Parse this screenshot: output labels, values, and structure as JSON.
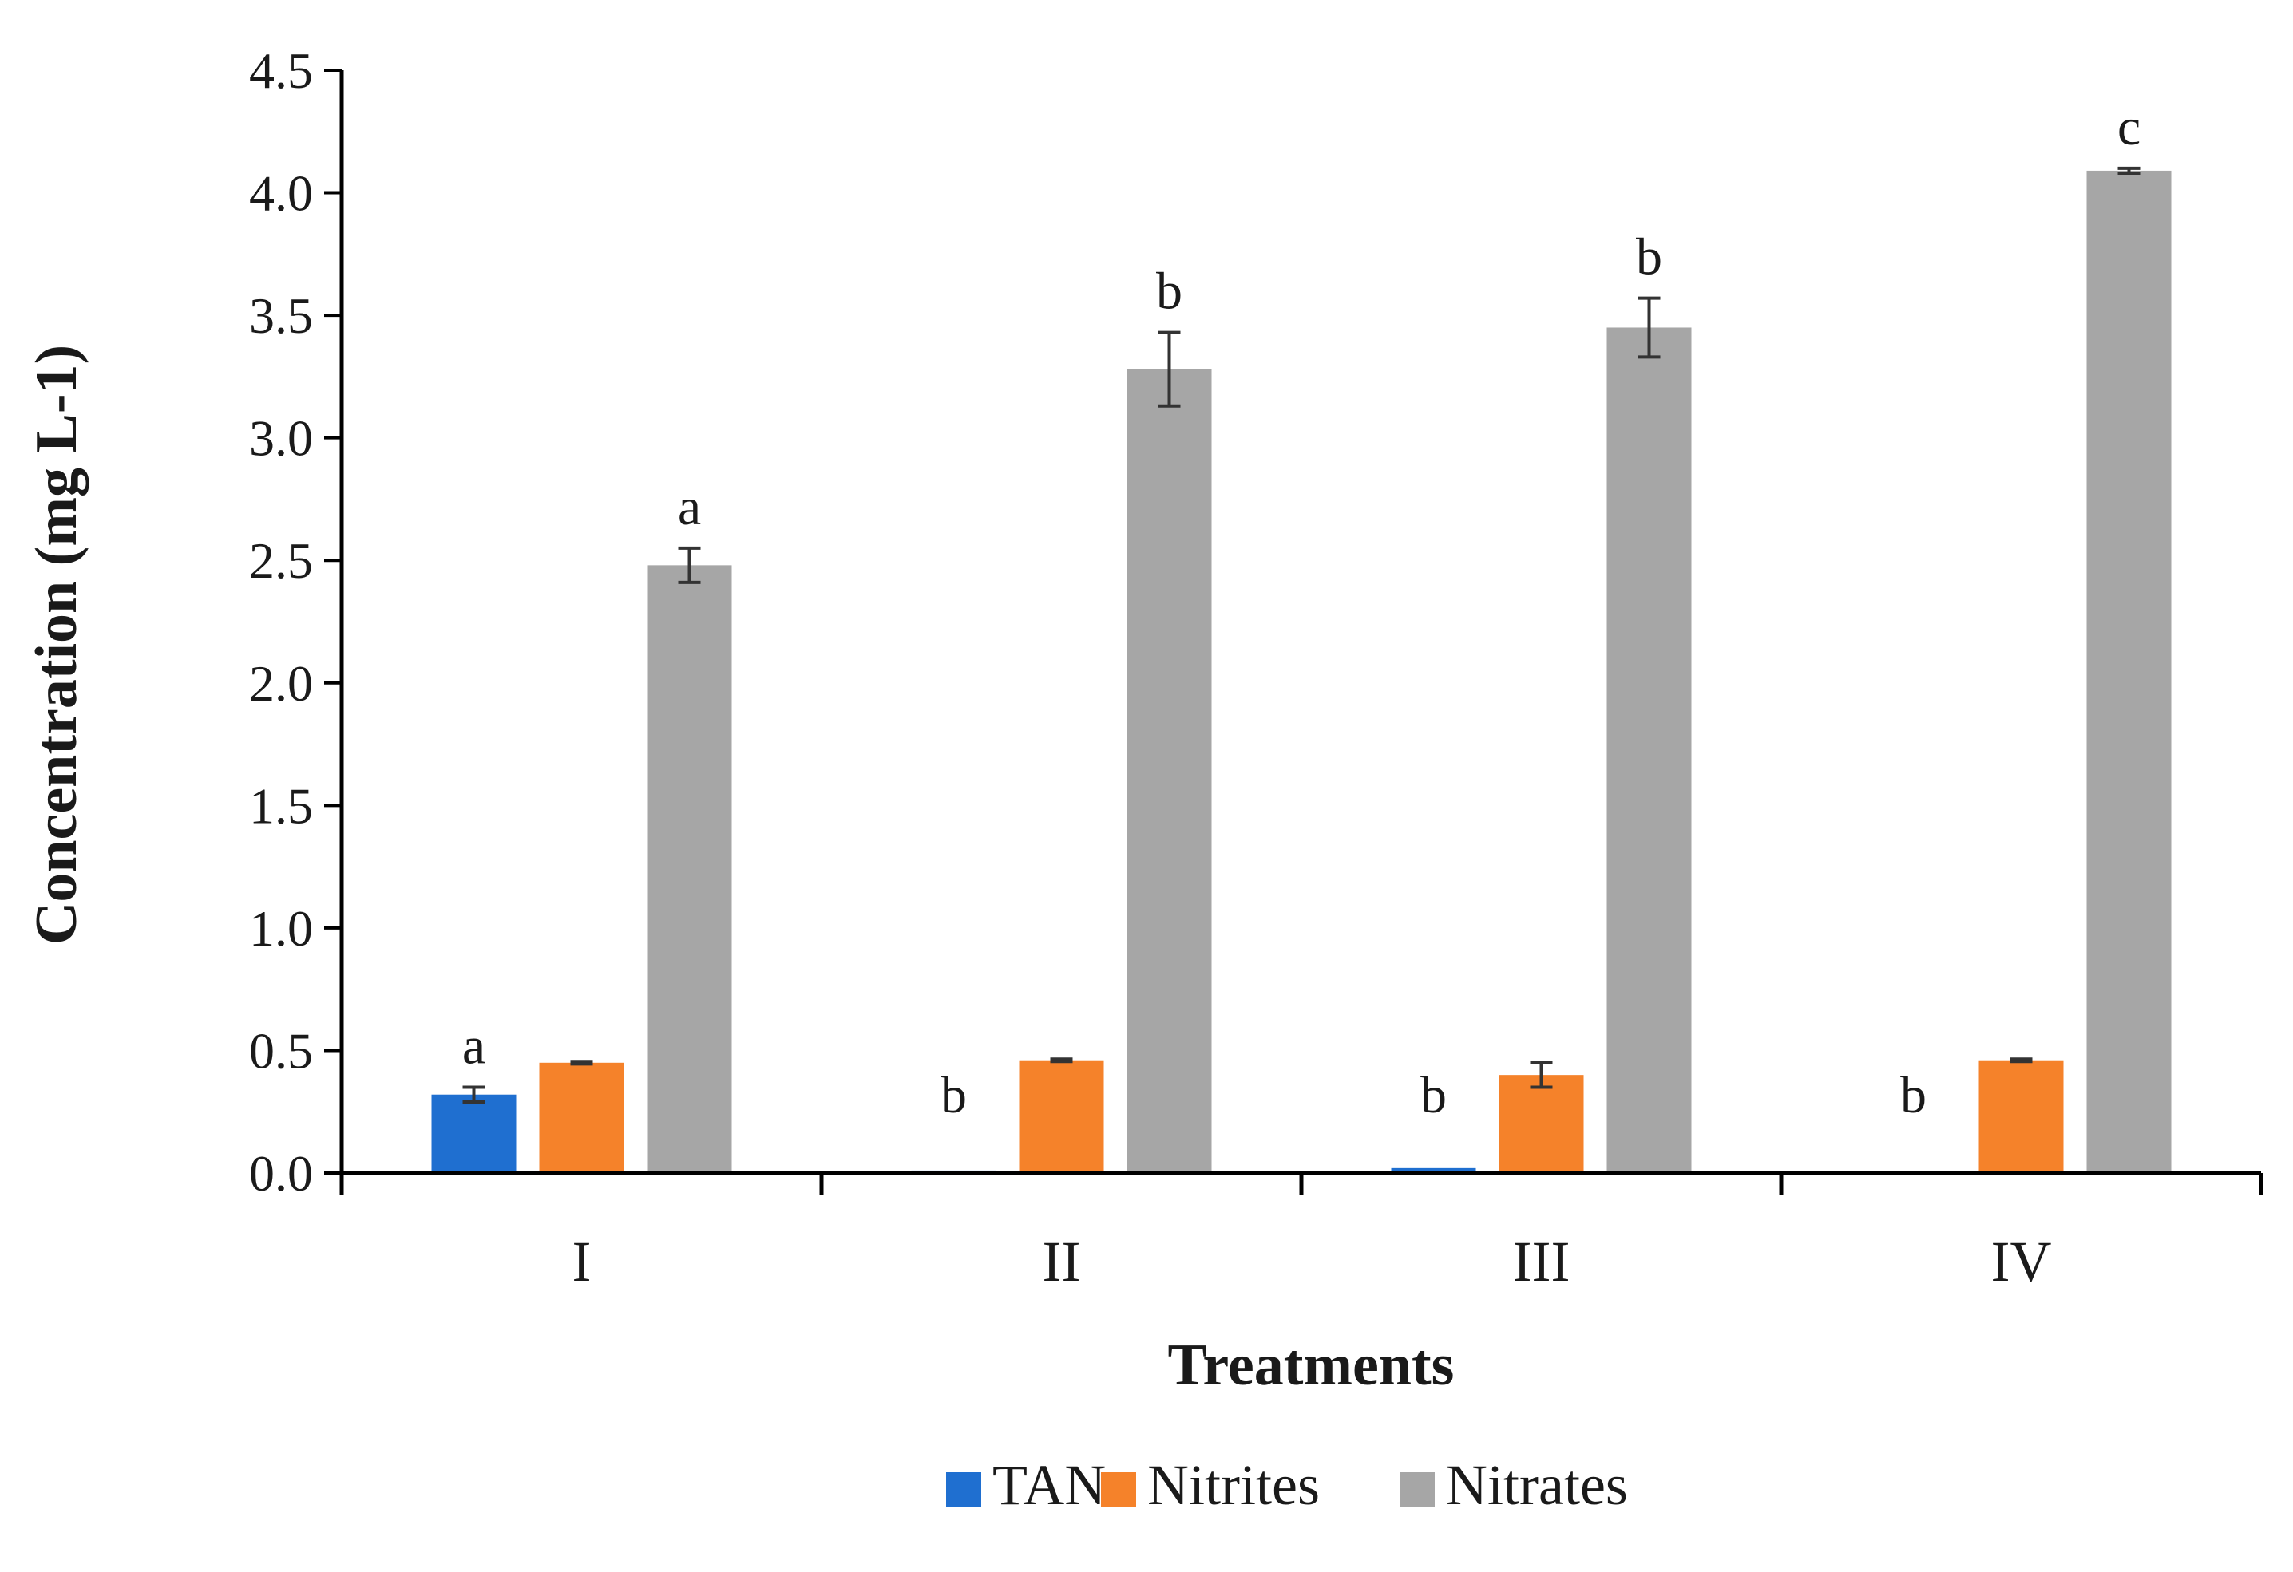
{
  "chart_data": {
    "type": "bar",
    "xlabel": "Treatments",
    "ylabel": "Concentration  (mg L-1)",
    "ylim": [
      0,
      4.5
    ],
    "ytick_step": 0.5,
    "yticks": [
      "0.0",
      "0.5",
      "1.0",
      "1.5",
      "2.0",
      "2.5",
      "3.0",
      "3.5",
      "4.0",
      "4.5"
    ],
    "grid": false,
    "legend_position": "bottom",
    "categories": [
      "I",
      "II",
      "III",
      "IV"
    ],
    "series": [
      {
        "name": "TAN",
        "color": "#1f6fd0",
        "values": [
          0.32,
          0.01,
          0.02,
          0.0
        ],
        "errors": [
          0.03,
          0.0,
          0.0,
          0.0
        ],
        "labels": [
          "a",
          "b",
          "b",
          "b"
        ]
      },
      {
        "name": "Nitrites",
        "color": "#f5822a",
        "values": [
          0.45,
          0.46,
          0.4,
          0.46
        ],
        "errors": [
          0.005,
          0.005,
          0.05,
          0.005
        ],
        "labels": [
          "",
          "",
          "",
          ""
        ]
      },
      {
        "name": "Nitrates",
        "color": "#a6a6a6",
        "values": [
          2.48,
          3.28,
          3.45,
          4.09
        ],
        "errors": [
          0.07,
          0.15,
          0.12,
          0.01
        ],
        "labels": [
          "a",
          "b",
          "b",
          "c"
        ]
      }
    ]
  }
}
